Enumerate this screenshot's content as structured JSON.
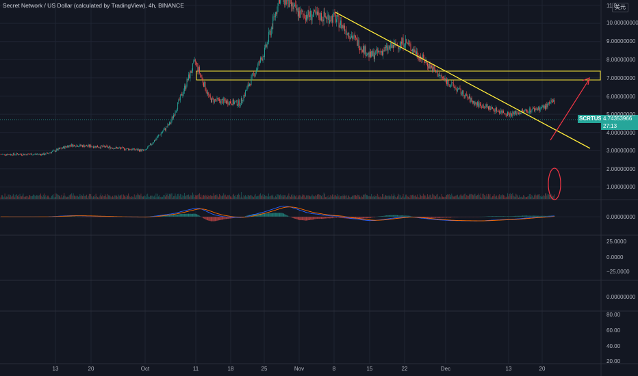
{
  "header": {
    "title": "Secret Network / US Dollar (calculated by TradingView), 4h, BINANCE",
    "currency_button": "美元"
  },
  "price_tag": {
    "symbol": "SCRTUSD",
    "last_price": "4.74353966",
    "countdown": "27:13"
  },
  "colors": {
    "background": "#131722",
    "up": "#26a69a",
    "down": "#ef5350",
    "trendline": "#ffeb3b",
    "arrow": "#f23645",
    "macd_line": "#2962ff",
    "signal_line": "#ff6d00"
  },
  "price_axis": [
    "11.0",
    "10.00000000",
    "9.00000000",
    "8.00000000",
    "7.00000000",
    "6.00000000",
    "5.00000000",
    "4.00000000",
    "3.00000000",
    "2.00000000",
    "1.00000000"
  ],
  "macd_axis": [
    "0.00000000"
  ],
  "pane3_axis": [
    "25.0000",
    "0.0000",
    "−25.0000"
  ],
  "pane4_axis": [
    "0.00000000"
  ],
  "pane5_axis": [
    "80.00",
    "60.00",
    "40.00",
    "20.00"
  ],
  "time_axis": [
    "13",
    "20",
    "Oct",
    "11",
    "18",
    "25",
    "Nov",
    "8",
    "15",
    "22",
    "Dec",
    "13",
    "20"
  ],
  "chart_data": {
    "type": "candlestick",
    "timeframe": "4h",
    "key_points": [
      {
        "date": "Sep 08",
        "price": 1.8
      },
      {
        "date": "Sep 13",
        "price": 2.3
      },
      {
        "date": "Sep 20",
        "price": 2.2
      },
      {
        "date": "Oct 01",
        "price": 2.0
      },
      {
        "date": "Oct 06",
        "price": 3.5
      },
      {
        "date": "Oct 11",
        "price": 6.9
      },
      {
        "date": "Oct 14",
        "price": 4.8
      },
      {
        "date": "Oct 20",
        "price": 4.6
      },
      {
        "date": "Oct 25",
        "price": 7.5
      },
      {
        "date": "Oct 28",
        "price": 10.5
      },
      {
        "date": "Nov 01",
        "price": 9.5
      },
      {
        "date": "Nov 08",
        "price": 9.3
      },
      {
        "date": "Nov 15",
        "price": 7.2
      },
      {
        "date": "Nov 22",
        "price": 8.0
      },
      {
        "date": "Nov 29",
        "price": 6.1
      },
      {
        "date": "Dec 06",
        "price": 4.6
      },
      {
        "date": "Dec 13",
        "price": 4.0
      },
      {
        "date": "Dec 20",
        "price": 4.4
      },
      {
        "date": "Dec 22",
        "price": 4.74
      }
    ],
    "resistance_zone": {
      "low": 7.0,
      "high": 7.4
    },
    "trendline": [
      {
        "date": "Nov 08",
        "price": 10.6
      },
      {
        "date": "Dec 27",
        "price": 3.1
      }
    ],
    "projection_arrow": [
      {
        "date": "Dec 20",
        "price": 3.6
      },
      {
        "date": "Dec 27",
        "price": 7.0
      }
    ],
    "ylim": [
      0,
      11
    ]
  }
}
